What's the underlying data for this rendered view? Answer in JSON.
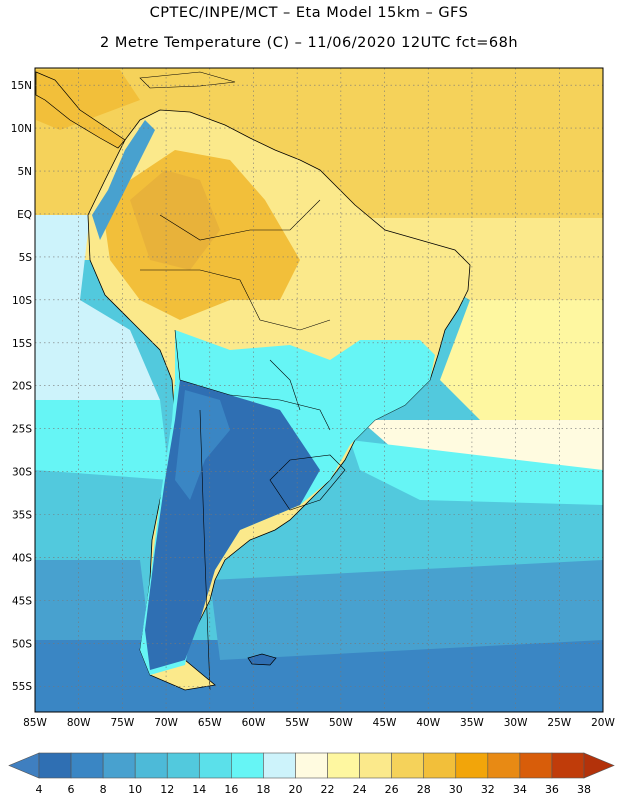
{
  "header": {
    "title_line1": "CPTEC/INPE/MCT –  Eta Model 15km – GFS",
    "title_line2": "2 Metre Temperature (C) – 11/06/2020 12UTC fct=68h"
  },
  "map_data": {
    "variable": "2 Metre Temperature",
    "units": "C",
    "lat_labels": [
      "15N",
      "10N",
      "5N",
      "EQ",
      "5S",
      "10S",
      "15S",
      "20S",
      "25S",
      "30S",
      "35S",
      "40S",
      "45S",
      "50S",
      "55S"
    ],
    "lon_labels": [
      "85W",
      "80W",
      "75W",
      "70W",
      "65W",
      "60W",
      "55W",
      "50W",
      "45W",
      "40W",
      "35W",
      "30W",
      "25W",
      "20W"
    ],
    "lat_range": [
      17,
      -58
    ],
    "lon_range": [
      -85,
      -20
    ],
    "grid": "dotted"
  },
  "colorbar": {
    "labels": [
      "4",
      "6",
      "8",
      "10",
      "12",
      "14",
      "16",
      "18",
      "20",
      "22",
      "24",
      "26",
      "28",
      "30",
      "32",
      "34",
      "36",
      "38"
    ],
    "colors": [
      "#3f7fc0",
      "#2f6fb3",
      "#3a86c4",
      "#48a1cf",
      "#4dbad8",
      "#52c9dd",
      "#5be0ea",
      "#66f5f5",
      "#cdf3fb",
      "#fffbe0",
      "#fef7a0",
      "#fbe98b",
      "#f5d25a",
      "#f2bf3a",
      "#f2a50a",
      "#e88a14",
      "#d85d0a",
      "#c03c0a",
      "#b3320a"
    ]
  }
}
